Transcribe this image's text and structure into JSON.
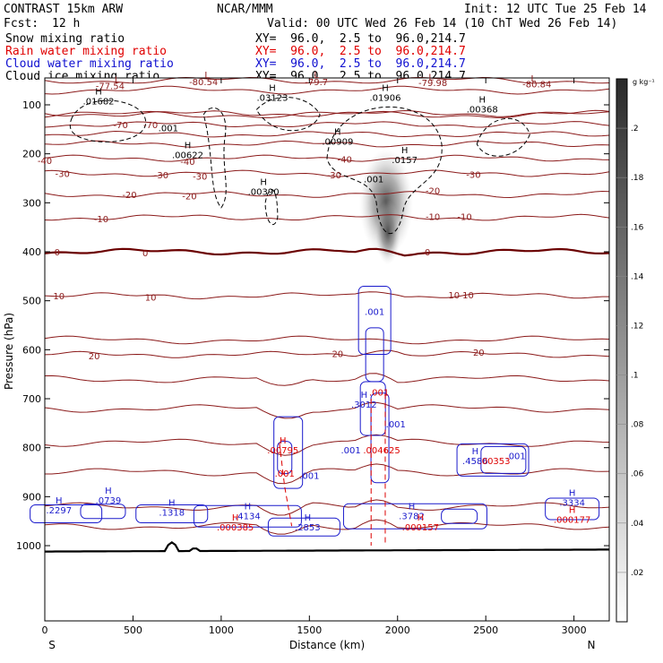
{
  "header": {
    "model": "CONTRAST 15km ARW",
    "org": "NCAR/MMM",
    "init": "Init: 12 UTC Tue 25 Feb 14",
    "fcst_label": "Fcst:",
    "fcst_value": "12 h",
    "valid": "Valid: 00 UTC Wed 26 Feb 14 (10 ChT Wed 26 Feb 14)",
    "fields": [
      {
        "name": "Snow mixing ratio",
        "xy": "XY=  96.0,  2.5 to  96.0,214.7",
        "color": "#000000"
      },
      {
        "name": "Rain water mixing ratio",
        "xy": "XY=  96.0,  2.5 to  96.0,214.7",
        "color": "#e00000"
      },
      {
        "name": "Cloud water mixing ratio",
        "xy": "XY=  96.0,  2.5 to  96.0,214.7",
        "color": "#1010d0"
      },
      {
        "name": "Cloud ice mixing ratio",
        "xy": "XY=  96.0,  2.5 to  96.0,214.7",
        "color": "#000000"
      }
    ]
  },
  "chart_data": {
    "type": "cross-section contour",
    "xlabel": "Distance (km)",
    "ylabel": "Pressure (hPa)",
    "x_ticks": [
      0,
      500,
      1000,
      1500,
      2000,
      2500,
      3000
    ],
    "x_tick_labels": [
      "0",
      "500",
      "1000",
      "1500",
      "2000",
      "2500",
      "3000"
    ],
    "xlim": [
      0,
      3200
    ],
    "y_ticks": [
      100,
      200,
      300,
      400,
      500,
      600,
      700,
      800,
      900,
      1000
    ],
    "y_tick_labels": [
      "100",
      "200",
      "300",
      "400",
      "500",
      "600",
      "700",
      "800",
      "900",
      "1000"
    ],
    "ylim": [
      1030,
      30
    ],
    "left_end_label": "S",
    "right_end_label": "N",
    "colorbar": {
      "unit": "g kg⁻¹",
      "ticks": [
        0.02,
        0.04,
        0.06,
        0.08,
        0.1,
        0.12,
        0.14,
        0.16,
        0.18,
        0.2
      ],
      "tick_labels": [
        ".02",
        ".04",
        ".06",
        ".08",
        ".1",
        ".12",
        ".14",
        ".16",
        ".18",
        ".2"
      ],
      "range": [
        0,
        0.22
      ]
    },
    "temperature_contours": {
      "color": "#8b1a1a",
      "zero_color": "#6b0000",
      "levels": [
        -80,
        -70,
        -60,
        -50,
        -40,
        -30,
        -20,
        -10,
        0,
        10,
        20
      ],
      "level_pressures": [
        118,
        140,
        160,
        180,
        209,
        240,
        283,
        330,
        400,
        490,
        610
      ],
      "labels": [
        {
          "text": "-70",
          "x": 430,
          "p": 140
        },
        {
          "text": "-70",
          "x": 600,
          "p": 140
        },
        {
          "text": "-40",
          "x": 0,
          "p": 213
        },
        {
          "text": "-40",
          "x": 810,
          "p": 215
        },
        {
          "text": "-40",
          "x": 1700,
          "p": 211
        },
        {
          "text": "-30",
          "x": 100,
          "p": 240
        },
        {
          "text": "-30",
          "x": 660,
          "p": 243
        },
        {
          "text": "-30",
          "x": 880,
          "p": 245
        },
        {
          "text": "-30",
          "x": 1640,
          "p": 243
        },
        {
          "text": "-30",
          "x": 2430,
          "p": 242
        },
        {
          "text": "-20",
          "x": 480,
          "p": 283
        },
        {
          "text": "-20",
          "x": 820,
          "p": 286
        },
        {
          "text": "-20",
          "x": 2200,
          "p": 275
        },
        {
          "text": "-10",
          "x": 320,
          "p": 332
        },
        {
          "text": "-10",
          "x": 2200,
          "p": 328
        },
        {
          "text": "-10",
          "x": 2380,
          "p": 328
        },
        {
          "text": "0",
          "x": 70,
          "p": 400
        },
        {
          "text": "0",
          "x": 570,
          "p": 402
        },
        {
          "text": "0",
          "x": 2170,
          "p": 400
        },
        {
          "text": "10",
          "x": 80,
          "p": 490
        },
        {
          "text": "10",
          "x": 600,
          "p": 492
        },
        {
          "text": "10",
          "x": 2320,
          "p": 488
        },
        {
          "text": "10",
          "x": 2400,
          "p": 488
        },
        {
          "text": "20",
          "x": 280,
          "p": 612
        },
        {
          "text": "20",
          "x": 1660,
          "p": 608
        },
        {
          "text": "20",
          "x": 2460,
          "p": 605
        }
      ]
    },
    "low_markers": [
      {
        "letter": "L",
        "value": "-77.54",
        "x": 410,
        "p": 55,
        "vx": 370,
        "vp": 68
      },
      {
        "letter": "L",
        "value": "-80.54",
        "x": 920,
        "p": 45,
        "vx": 900,
        "vp": 60
      },
      {
        "letter": "L",
        "value": "-79.7",
        "x": 1540,
        "p": 45,
        "vx": 1540,
        "vp": 60
      },
      {
        "letter": "L",
        "value": "-79.98",
        "x": 2190,
        "p": 50,
        "vx": 2200,
        "vp": 62
      },
      {
        "letter": "L",
        "value": "-80.84",
        "x": 2770,
        "p": 52,
        "vx": 2790,
        "vp": 64
      }
    ],
    "ice_labels": [
      {
        "letter": "H",
        "value": ".01682",
        "x": 305,
        "p": 95
      },
      {
        "letter": "",
        "value": ".001",
        "x": 700,
        "p": 150
      },
      {
        "letter": "H",
        "value": ".03123",
        "x": 1290,
        "p": 88
      },
      {
        "letter": "H",
        "value": ".01906",
        "x": 1930,
        "p": 88
      },
      {
        "letter": "H",
        "value": ".00368",
        "x": 2480,
        "p": 112
      },
      {
        "letter": "H",
        "value": ".00909",
        "x": 1660,
        "p": 178
      },
      {
        "letter": "H",
        "value": ".0157",
        "x": 2040,
        "p": 215
      },
      {
        "letter": "H",
        "value": ".00622",
        "x": 810,
        "p": 205
      },
      {
        "letter": "",
        "value": ".001",
        "x": 1865,
        "p": 255
      },
      {
        "letter": "H",
        "value": ".00390",
        "x": 1240,
        "p": 280
      }
    ],
    "cloud_water_labels": [
      {
        "letter": "",
        "value": ".001",
        "x": 1870,
        "p": 525
      },
      {
        "letter": "H",
        "value": ".3012",
        "x": 1810,
        "p": 715
      },
      {
        "letter": "",
        "value": ".001",
        "x": 1990,
        "p": 755
      },
      {
        "letter": "",
        "value": ".001",
        "x": 1735,
        "p": 808
      },
      {
        "letter": "",
        "value": ".001",
        "x": 1500,
        "p": 860
      },
      {
        "letter": "H",
        "value": ".2297",
        "x": 80,
        "p": 930
      },
      {
        "letter": "H",
        "value": ".0739",
        "x": 360,
        "p": 910
      },
      {
        "letter": "H",
        "value": ".1318",
        "x": 720,
        "p": 935
      },
      {
        "letter": "H",
        "value": ".4134",
        "x": 1150,
        "p": 942
      },
      {
        "letter": "H",
        "value": ".2853",
        "x": 1490,
        "p": 965
      },
      {
        "letter": "H",
        "value": ".3782",
        "x": 2080,
        "p": 942
      },
      {
        "letter": "H",
        "value": ".4586",
        "x": 2440,
        "p": 830
      },
      {
        "letter": "",
        "value": ".001",
        "x": 2670,
        "p": 820
      },
      {
        "letter": "H",
        "value": ".3334",
        "x": 2990,
        "p": 915
      }
    ],
    "rain_labels": [
      {
        "letter": "H",
        "value": ".00795",
        "x": 1350,
        "p": 808
      },
      {
        "letter": "",
        "value": ".001",
        "x": 1360,
        "p": 855
      },
      {
        "letter": "",
        "value": ".001",
        "x": 1895,
        "p": 690
      },
      {
        "letter": "",
        "value": ".004625",
        "x": 1910,
        "p": 808
      },
      {
        "letter": "",
        "value": ".00353",
        "x": 2550,
        "p": 830
      },
      {
        "letter": "H",
        "value": ".000385",
        "x": 1080,
        "p": 965
      },
      {
        "letter": "H",
        "value": ".000157",
        "x": 2130,
        "p": 965
      },
      {
        "letter": "H",
        "value": ".000177",
        "x": 2990,
        "p": 950
      }
    ]
  }
}
